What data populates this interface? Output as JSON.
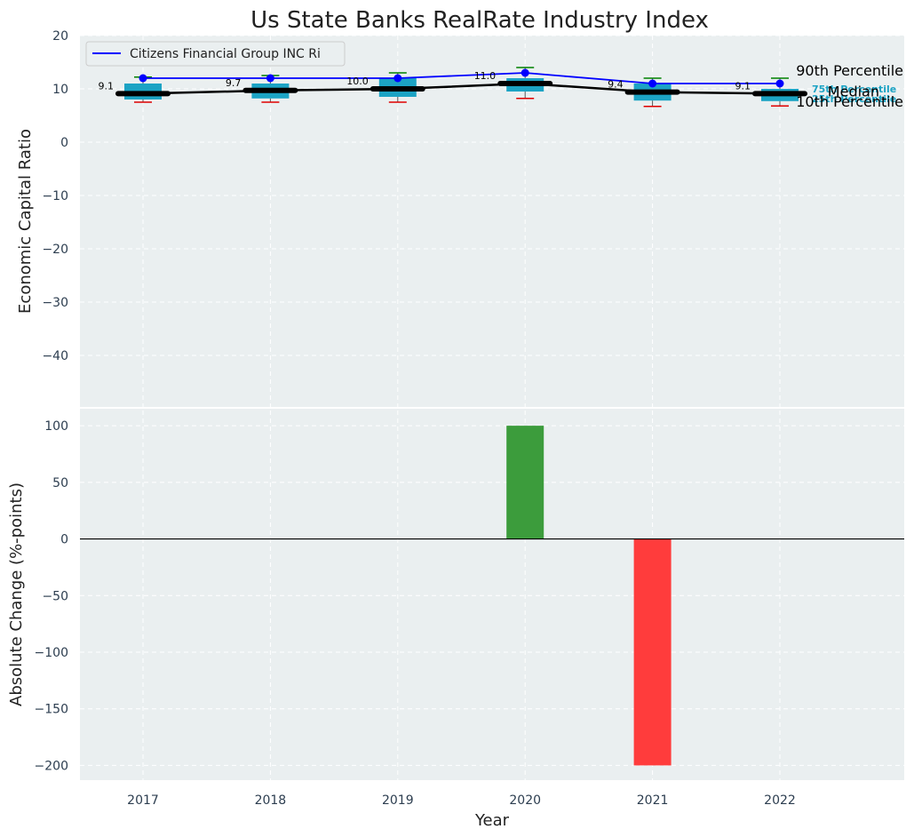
{
  "chart_data": [
    {
      "type": "box",
      "title": "Us State Banks RealRate Industry Index",
      "ylabel": "Economic Capital Ratio",
      "ylim": [
        -50,
        20
      ],
      "yticks": [
        20,
        10,
        0,
        -10,
        -20,
        -30,
        -40
      ],
      "categories": [
        "2017",
        "2018",
        "2019",
        "2020",
        "2021",
        "2022"
      ],
      "boxes": [
        {
          "p10": 7.5,
          "p25": 8.0,
          "median": 9.1,
          "p75": 11.0,
          "p90": 12.2
        },
        {
          "p10": 7.5,
          "p25": 8.2,
          "median": 9.7,
          "p75": 11.0,
          "p90": 12.5
        },
        {
          "p10": 7.5,
          "p25": 8.5,
          "median": 10.0,
          "p75": 12.0,
          "p90": 13.0
        },
        {
          "p10": 8.2,
          "p25": 9.5,
          "median": 11.0,
          "p75": 12.0,
          "p90": 14.0
        },
        {
          "p10": 6.7,
          "p25": 7.8,
          "median": 9.4,
          "p75": 11.0,
          "p90": 12.0
        },
        {
          "p10": 6.8,
          "p25": 7.7,
          "median": 9.1,
          "p75": 10.0,
          "p90": 12.0
        }
      ],
      "median_labels": [
        "9.1",
        "9.7",
        "10.0",
        "11.0",
        "9.4",
        "9.1"
      ],
      "series": [
        {
          "name": "Citizens Financial Group INC Ri",
          "values": [
            12.0,
            12.0,
            12.0,
            13.0,
            11.0,
            11.0
          ],
          "color": "#0000ff"
        }
      ],
      "median_color": "#000000",
      "box_color": "#1ca3c4",
      "whisker_high_color": "#008000",
      "whisker_low_color": "#e00000",
      "legend_position": "top-left",
      "percentile_labels": {
        "p90": "90th Percentile",
        "median": "Median",
        "p10": "10th Percentile",
        "p75": "75th Percentile",
        "p25": "25th Percentile"
      },
      "grid": true
    },
    {
      "type": "bar",
      "xlabel": "Year",
      "ylabel": "Absolute Change (%-points)",
      "ylim": [
        -213,
        115
      ],
      "yticks": [
        100,
        50,
        0,
        -50,
        -100,
        -150,
        -200
      ],
      "categories": [
        "2017",
        "2018",
        "2019",
        "2020",
        "2021",
        "2022"
      ],
      "values": [
        0,
        0,
        0,
        100,
        -200,
        0
      ],
      "positive_color": "#3c9c3c",
      "negative_color": "#ff3c3c",
      "grid": true
    }
  ]
}
